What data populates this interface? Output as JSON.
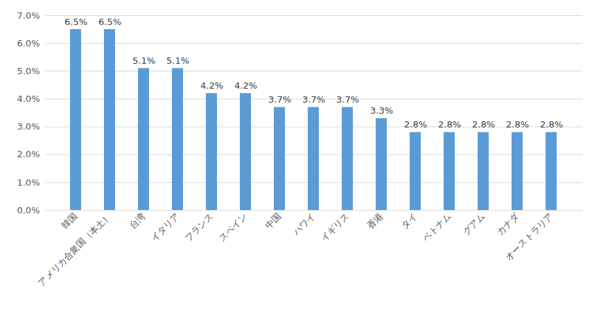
{
  "chart_data": {
    "type": "bar",
    "categories": [
      "韓国",
      "アメリカ合衆国（本土）",
      "台湾",
      "イタリア",
      "フランス",
      "スペイン",
      "中国",
      "ハワイ",
      "イギリス",
      "香港",
      "タイ",
      "ベトナム",
      "グアム",
      "カナダ",
      "オーストラリア"
    ],
    "values": [
      6.5,
      6.5,
      5.1,
      5.1,
      4.2,
      4.2,
      3.7,
      3.7,
      3.7,
      3.3,
      2.8,
      2.8,
      2.8,
      2.8,
      2.8
    ],
    "value_labels": [
      "6.5%",
      "6.5%",
      "5.1%",
      "5.1%",
      "4.2%",
      "4.2%",
      "3.7%",
      "3.7%",
      "3.7%",
      "3.3%",
      "2.8%",
      "2.8%",
      "2.8%",
      "2.8%",
      "2.8%"
    ],
    "color": "#5b9bd5",
    "ylim": [
      0,
      7
    ],
    "yticks": [
      {
        "value": 0,
        "label": "0.0%"
      },
      {
        "value": 1,
        "label": "1.0%"
      },
      {
        "value": 2,
        "label": "2.0%"
      },
      {
        "value": 3,
        "label": "3.0%"
      },
      {
        "value": 4,
        "label": "4.0%"
      },
      {
        "value": 5,
        "label": "5.0%"
      },
      {
        "value": 6,
        "label": "6.0%"
      },
      {
        "value": 7,
        "label": "7.0%"
      }
    ],
    "grid": true,
    "data_labels": true
  }
}
